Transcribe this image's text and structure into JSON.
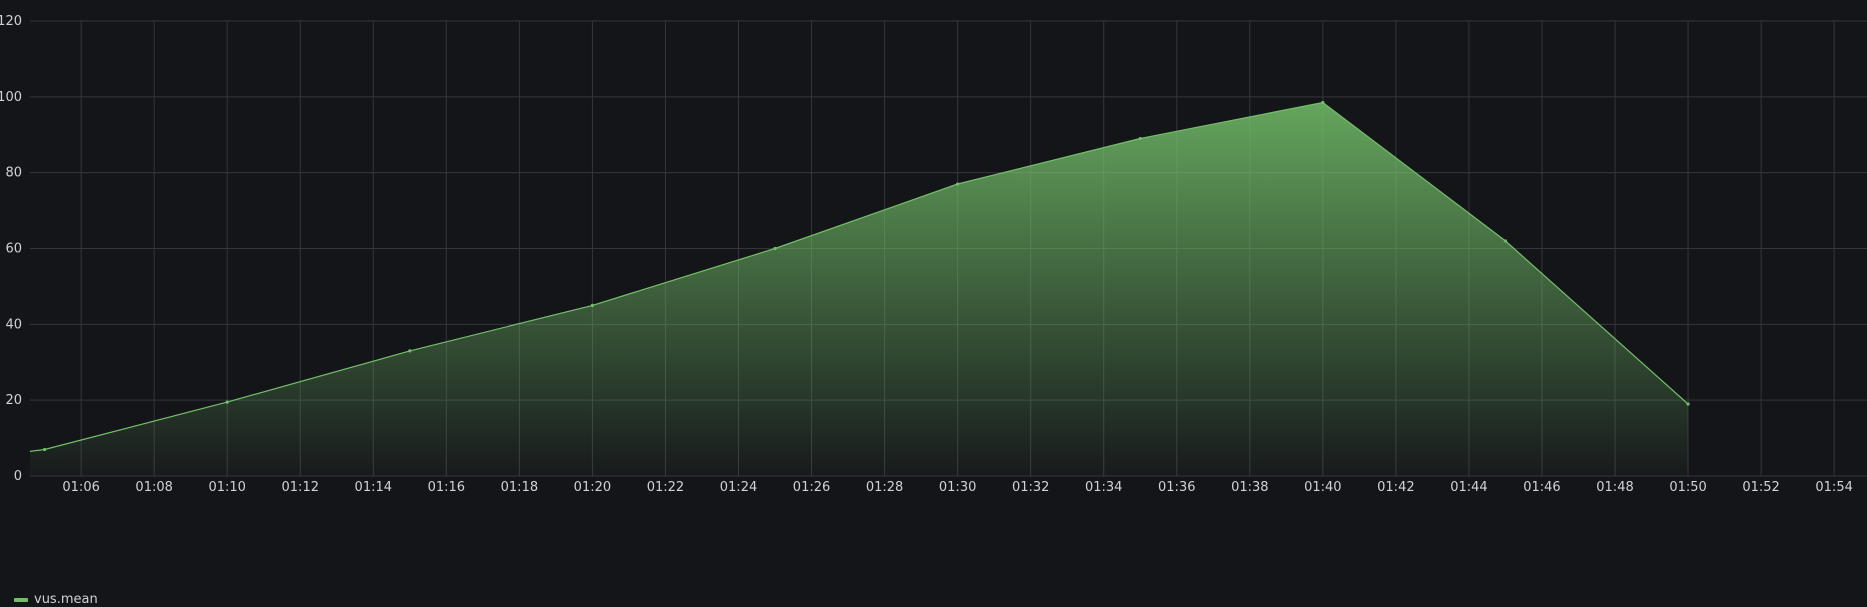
{
  "chart_data": {
    "type": "area",
    "x_labels": [
      "01:06",
      "01:08",
      "01:10",
      "01:12",
      "01:14",
      "01:16",
      "01:18",
      "01:20",
      "01:22",
      "01:24",
      "01:26",
      "01:28",
      "01:30",
      "01:32",
      "01:34",
      "01:36",
      "01:38",
      "01:40",
      "01:42",
      "01:44",
      "01:46",
      "01:48",
      "01:50",
      "01:52",
      "01:54"
    ],
    "x_label_minutes": [
      6,
      8,
      10,
      12,
      14,
      16,
      18,
      20,
      22,
      24,
      26,
      28,
      30,
      32,
      34,
      36,
      38,
      40,
      42,
      44,
      46,
      48,
      50,
      52,
      54
    ],
    "xlim_minutes": [
      4.6,
      54.9
    ],
    "y_ticks": [
      0,
      20,
      40,
      60,
      80,
      100,
      120
    ],
    "ylim": [
      0,
      120
    ],
    "grid": true,
    "legend_position": "bottom-left",
    "series": [
      {
        "name": "vus.mean",
        "color": "#73bf69",
        "x_minutes": [
          4.6,
          5,
          10,
          15,
          20,
          25,
          30,
          35,
          40,
          45,
          50
        ],
        "values": [
          6.5,
          7,
          19.5,
          33,
          45,
          60,
          77,
          89,
          98.5,
          62,
          19
        ]
      }
    ]
  }
}
